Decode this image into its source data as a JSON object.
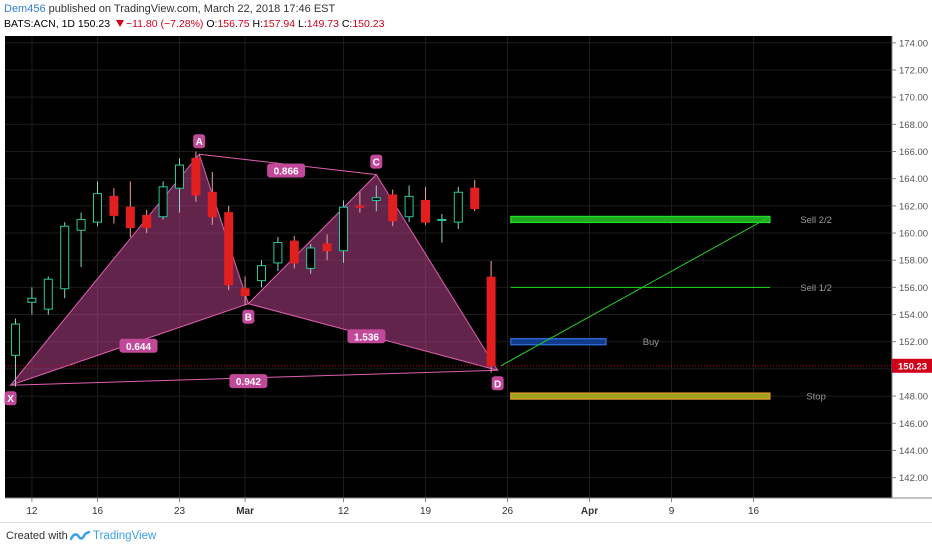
{
  "header": {
    "author": "Dem456",
    "published": "published on TradingView.com, March 22, 2018 17:46 EST",
    "symbol": "BATS:ACN, 1D",
    "last": "150.23",
    "change": "−11.80 (−7.28%)",
    "o_label": "O:",
    "o_val": "156.75",
    "h_label": "H:",
    "h_val": "157.94",
    "l_label": "L:",
    "l_val": "149.73",
    "c_label": "C:",
    "c_val": "150.23"
  },
  "footer": {
    "created_with": "Created with",
    "brand": "TradingView"
  },
  "colors": {
    "up": "#26a69a",
    "down": "#ef5350",
    "background": "#000000",
    "pattern": "#b4418a"
  },
  "chart_data": {
    "type": "candlestick",
    "ylim": [
      140.5,
      174.5
    ],
    "yticks": [
      "142.00",
      "144.00",
      "146.00",
      "148.00",
      "150.00",
      "152.00",
      "154.00",
      "156.00",
      "158.00",
      "160.00",
      "162.00",
      "164.00",
      "166.00",
      "168.00",
      "170.00",
      "172.00",
      "174.00"
    ],
    "xticks": [
      {
        "label": "12",
        "i": 1
      },
      {
        "label": "16",
        "i": 5
      },
      {
        "label": "23",
        "i": 10
      },
      {
        "label": "Mar",
        "i": 14
      },
      {
        "label": "12",
        "i": 20
      },
      {
        "label": "19",
        "i": 25
      },
      {
        "label": "26",
        "i": 30
      },
      {
        "label": "Apr",
        "i": 35
      },
      {
        "label": "9",
        "i": 40
      },
      {
        "label": "16",
        "i": 45
      }
    ],
    "candles": [
      {
        "i": 0,
        "o": 151.0,
        "h": 153.7,
        "l": 148.7,
        "c": 153.3
      },
      {
        "i": 1,
        "o": 154.9,
        "h": 156.0,
        "l": 154.0,
        "c": 155.2
      },
      {
        "i": 2,
        "o": 154.4,
        "h": 156.8,
        "l": 154.0,
        "c": 156.6
      },
      {
        "i": 3,
        "o": 155.9,
        "h": 160.8,
        "l": 155.2,
        "c": 160.5
      },
      {
        "i": 4,
        "o": 160.2,
        "h": 161.5,
        "l": 157.5,
        "c": 161.0
      },
      {
        "i": 5,
        "o": 160.8,
        "h": 163.8,
        "l": 160.5,
        "c": 162.9
      },
      {
        "i": 6,
        "o": 162.7,
        "h": 163.3,
        "l": 160.7,
        "c": 161.3
      },
      {
        "i": 7,
        "o": 161.9,
        "h": 163.8,
        "l": 159.7,
        "c": 160.4
      },
      {
        "i": 8,
        "o": 161.3,
        "h": 161.7,
        "l": 160.0,
        "c": 160.4
      },
      {
        "i": 9,
        "o": 161.2,
        "h": 163.8,
        "l": 161.0,
        "c": 163.4
      },
      {
        "i": 10,
        "o": 163.3,
        "h": 165.5,
        "l": 161.5,
        "c": 165.0
      },
      {
        "i": 11,
        "o": 165.5,
        "h": 166.0,
        "l": 162.3,
        "c": 162.8
      },
      {
        "i": 12,
        "o": 163.0,
        "h": 164.5,
        "l": 160.6,
        "c": 161.2
      },
      {
        "i": 13,
        "o": 161.5,
        "h": 162.0,
        "l": 155.8,
        "c": 156.2
      },
      {
        "i": 14,
        "o": 155.9,
        "h": 156.8,
        "l": 154.7,
        "c": 155.4
      },
      {
        "i": 15,
        "o": 156.5,
        "h": 158.0,
        "l": 156.0,
        "c": 157.6
      },
      {
        "i": 16,
        "o": 157.8,
        "h": 159.7,
        "l": 157.2,
        "c": 159.3
      },
      {
        "i": 17,
        "o": 159.4,
        "h": 159.8,
        "l": 157.4,
        "c": 157.8
      },
      {
        "i": 18,
        "o": 157.4,
        "h": 159.2,
        "l": 157.0,
        "c": 158.9
      },
      {
        "i": 19,
        "o": 159.2,
        "h": 159.9,
        "l": 158.0,
        "c": 158.7
      },
      {
        "i": 20,
        "o": 158.7,
        "h": 162.4,
        "l": 157.8,
        "c": 161.9
      },
      {
        "i": 21,
        "o": 162.0,
        "h": 163.0,
        "l": 161.5,
        "c": 161.9
      },
      {
        "i": 22,
        "o": 162.4,
        "h": 163.5,
        "l": 161.6,
        "c": 162.6
      },
      {
        "i": 23,
        "o": 162.8,
        "h": 163.2,
        "l": 160.5,
        "c": 160.9
      },
      {
        "i": 24,
        "o": 161.2,
        "h": 163.5,
        "l": 160.8,
        "c": 162.7
      },
      {
        "i": 25,
        "o": 162.4,
        "h": 163.4,
        "l": 160.6,
        "c": 160.8
      },
      {
        "i": 26,
        "o": 161.0,
        "h": 161.4,
        "l": 159.3,
        "c": 161.0
      },
      {
        "i": 27,
        "o": 160.8,
        "h": 163.4,
        "l": 160.3,
        "c": 163.0
      },
      {
        "i": 28,
        "o": 163.3,
        "h": 163.9,
        "l": 161.6,
        "c": 161.8
      },
      {
        "i": 29,
        "o": 156.75,
        "h": 157.94,
        "l": 149.73,
        "c": 150.23
      }
    ],
    "pattern": {
      "points": [
        {
          "label": "X",
          "i": -0.3,
          "p": 148.8
        },
        {
          "label": "A",
          "i": 11.2,
          "p": 165.8
        },
        {
          "label": "B",
          "i": 14.2,
          "p": 154.8
        },
        {
          "label": "C",
          "i": 22.0,
          "p": 164.3
        },
        {
          "label": "D",
          "i": 29.4,
          "p": 149.9
        }
      ],
      "ratios": [
        {
          "text": "0.644",
          "i": 7.5,
          "p": 151.7
        },
        {
          "text": "0.866",
          "i": 16.5,
          "p": 164.6
        },
        {
          "text": "1.536",
          "i": 21.4,
          "p": 152.4
        },
        {
          "text": "0.942",
          "i": 14.2,
          "p": 149.1
        }
      ]
    },
    "levels": [
      {
        "label": "Sell 2/2",
        "price": 161.0,
        "color": "#22dd22",
        "i0": 30.2,
        "i1": 46.0,
        "box": true,
        "labelI": 49
      },
      {
        "label": "Sell 1/2",
        "price": 156.0,
        "color": "#22dd22",
        "i0": 30.2,
        "i1": 46.0,
        "box": false,
        "labelI": 49
      },
      {
        "label": "Buy",
        "price": 152.0,
        "color": "#2a6fdb",
        "i0": 30.2,
        "i1": 36.0,
        "box": true,
        "labelI": 38
      },
      {
        "label": "Stop",
        "price": 148.0,
        "color": "#e09a2a",
        "i0": 30.2,
        "i1": 46.0,
        "box": true,
        "labelI": 49
      }
    ],
    "projection": {
      "i0": 29.6,
      "p0": 150.23,
      "i1": 46.0,
      "p1": 161.2
    },
    "last_price": "150.23"
  }
}
